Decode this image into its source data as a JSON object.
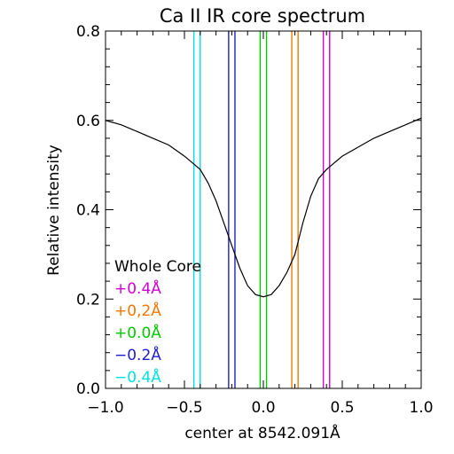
{
  "chart_data": {
    "type": "line",
    "title": "Ca II IR core spectrum",
    "xlabel": "center at 8542.091Å",
    "ylabel": "Relative intensity",
    "xlim": [
      -1.0,
      1.0
    ],
    "ylim": [
      0.0,
      0.8
    ],
    "xticks": [
      -1.0,
      -0.5,
      0.0,
      0.5,
      1.0
    ],
    "xtick_labels": [
      "−1.0",
      "−0.5",
      "0.0",
      "0.5",
      "1.0"
    ],
    "yticks": [
      0.0,
      0.2,
      0.4,
      0.6,
      0.8
    ],
    "ytick_labels": [
      "0.0",
      "0.2",
      "0.4",
      "0.6",
      "0.8"
    ],
    "grid": false,
    "series": [
      {
        "name": "",
        "color": "#000000",
        "x": [
          -1.0,
          -0.9,
          -0.8,
          -0.7,
          -0.6,
          -0.5,
          -0.45,
          -0.4,
          -0.35,
          -0.3,
          -0.25,
          -0.2,
          -0.15,
          -0.1,
          -0.05,
          0.0,
          0.05,
          0.1,
          0.15,
          0.2,
          0.25,
          0.3,
          0.35,
          0.4,
          0.45,
          0.5,
          0.6,
          0.7,
          0.8,
          0.9,
          1.0
        ],
        "y": [
          0.6,
          0.59,
          0.575,
          0.56,
          0.545,
          0.52,
          0.505,
          0.49,
          0.46,
          0.42,
          0.37,
          0.32,
          0.27,
          0.23,
          0.21,
          0.205,
          0.21,
          0.23,
          0.26,
          0.3,
          0.37,
          0.43,
          0.47,
          0.49,
          0.505,
          0.52,
          0.54,
          0.56,
          0.575,
          0.59,
          0.605
        ]
      }
    ],
    "band_lines": [
      {
        "label": "−0.4Å",
        "color": "#00e0e0",
        "x": [
          -0.44,
          -0.4
        ]
      },
      {
        "label": "−0.2Å",
        "color": "#2020c8",
        "x": [
          -0.22,
          -0.18
        ]
      },
      {
        "label": "+0.0Å",
        "color": "#00c800",
        "x": [
          -0.02,
          0.02
        ]
      },
      {
        "label": "+0,2Å",
        "color": "#f07800",
        "x": [
          0.18,
          0.22
        ]
      },
      {
        "label": "+0.4Å",
        "color": "#d000d0",
        "x": [
          0.38,
          0.42
        ]
      }
    ],
    "legend": {
      "placement": "bottom-left",
      "entries": [
        {
          "label": "Whole Core",
          "color": "#000000"
        },
        {
          "label": "+0.4Å",
          "color": "#d000d0"
        },
        {
          "label": "+0,2Å",
          "color": "#f07800"
        },
        {
          "label": "+0.0Å",
          "color": "#00c800"
        },
        {
          "label": "−0.2Å",
          "color": "#2020c8"
        },
        {
          "label": "−0.4Å",
          "color": "#00e0e0"
        }
      ]
    }
  }
}
